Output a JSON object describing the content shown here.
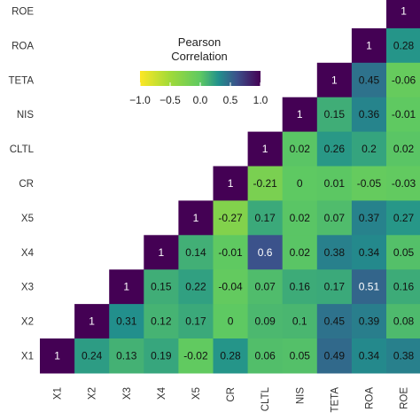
{
  "chart_data": {
    "type": "heatmap",
    "title": "",
    "xlabel": "",
    "ylabel": "",
    "variables": [
      "X1",
      "X2",
      "X3",
      "X4",
      "X5",
      "CR",
      "CLTL",
      "NIS",
      "TETA",
      "ROA",
      "ROE"
    ],
    "rows": [
      {
        "name": "ROE",
        "values": [
          null,
          null,
          null,
          null,
          null,
          null,
          null,
          null,
          null,
          null,
          1
        ]
      },
      {
        "name": "ROA",
        "values": [
          null,
          null,
          null,
          null,
          null,
          null,
          null,
          null,
          null,
          1,
          0.28
        ]
      },
      {
        "name": "TETA",
        "values": [
          null,
          null,
          null,
          null,
          null,
          null,
          null,
          null,
          1,
          0.45,
          -0.06
        ]
      },
      {
        "name": "NIS",
        "values": [
          null,
          null,
          null,
          null,
          null,
          null,
          null,
          1,
          0.15,
          0.36,
          -0.01
        ]
      },
      {
        "name": "CLTL",
        "values": [
          null,
          null,
          null,
          null,
          null,
          null,
          1,
          0.02,
          0.26,
          0.2,
          0.02
        ]
      },
      {
        "name": "CR",
        "values": [
          null,
          null,
          null,
          null,
          null,
          1,
          -0.21,
          0,
          0.01,
          -0.05,
          -0.03
        ]
      },
      {
        "name": "X5",
        "values": [
          null,
          null,
          null,
          null,
          1,
          -0.27,
          0.17,
          0.02,
          0.07,
          0.37,
          0.27
        ]
      },
      {
        "name": "X4",
        "values": [
          null,
          null,
          null,
          1,
          0.14,
          -0.01,
          0.6,
          0.02,
          0.38,
          0.34,
          0.05
        ]
      },
      {
        "name": "X3",
        "values": [
          null,
          null,
          1,
          0.15,
          0.22,
          -0.04,
          0.07,
          0.16,
          0.17,
          0.51,
          0.16
        ]
      },
      {
        "name": "X2",
        "values": [
          null,
          1,
          0.31,
          0.12,
          0.17,
          0,
          0.09,
          0.1,
          0.45,
          0.39,
          0.08
        ]
      },
      {
        "name": "X1",
        "values": [
          1,
          0.24,
          0.13,
          0.19,
          -0.02,
          0.28,
          0.06,
          0.05,
          0.49,
          0.34,
          0.38
        ]
      }
    ],
    "legend": {
      "title_line1": "Pearson",
      "title_line2": "Correlation",
      "ticks": [
        "−1.0",
        "−0.5",
        "0.0",
        "0.5",
        "1.0"
      ],
      "range": [
        -1,
        1
      ],
      "placement": "top-center"
    },
    "colors": {
      "low": "#fde725",
      "mid": "#5ec962",
      "high": "#440154"
    }
  }
}
